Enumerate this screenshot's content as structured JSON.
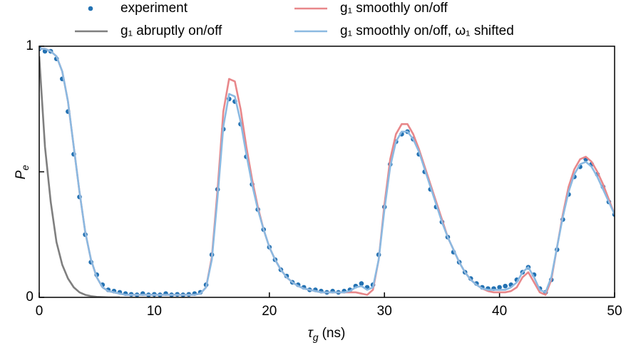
{
  "chart_data": {
    "type": "line",
    "xlabel": {
      "symbol": "τ",
      "sub": "g",
      "unit": "(ns)"
    },
    "ylabel": {
      "symbol": "P",
      "sub": "e"
    },
    "xlim": [
      0,
      50
    ],
    "ylim": [
      0,
      1
    ],
    "xticks": [
      0,
      10,
      20,
      30,
      40,
      50
    ],
    "yticks": [
      0,
      1
    ],
    "minor_yticks": [
      0.5
    ],
    "x": [
      0,
      0.5,
      1,
      1.5,
      2,
      2.5,
      3,
      3.5,
      4,
      4.5,
      5,
      5.5,
      6,
      6.5,
      7,
      7.5,
      8,
      8.5,
      9,
      9.5,
      10,
      10.5,
      11,
      11.5,
      12,
      12.5,
      13,
      13.5,
      14,
      14.5,
      15,
      15.5,
      16,
      16.5,
      17,
      17.5,
      18,
      18.5,
      19,
      19.5,
      20,
      20.5,
      21,
      21.5,
      22,
      22.5,
      23,
      23.5,
      24,
      24.5,
      25,
      25.5,
      26,
      26.5,
      27,
      27.5,
      28,
      28.5,
      29,
      29.5,
      30,
      30.5,
      31,
      31.5,
      32,
      32.5,
      33,
      33.5,
      34,
      34.5,
      35,
      35.5,
      36,
      36.5,
      37,
      37.5,
      38,
      38.5,
      39,
      39.5,
      40,
      40.5,
      41,
      41.5,
      42,
      42.5,
      43,
      43.5,
      44,
      44.5,
      45,
      45.5,
      46,
      46.5,
      47,
      47.5,
      48,
      48.5,
      49,
      49.5,
      50
    ],
    "series": [
      {
        "name": "experiment",
        "kind": "scatter",
        "color": "#2372b3",
        "values": [
          0.99,
          0.98,
          0.98,
          0.95,
          0.87,
          0.74,
          0.57,
          0.4,
          0.25,
          0.14,
          0.09,
          0.05,
          0.03,
          0.025,
          0.02,
          0.015,
          0.012,
          0.01,
          0.015,
          0.01,
          0.012,
          0.01,
          0.015,
          0.01,
          0.012,
          0.01,
          0.012,
          0.015,
          0.02,
          0.05,
          0.17,
          0.43,
          0.67,
          0.79,
          0.78,
          0.69,
          0.56,
          0.45,
          0.35,
          0.27,
          0.2,
          0.15,
          0.11,
          0.085,
          0.06,
          0.05,
          0.04,
          0.03,
          0.03,
          0.025,
          0.02,
          0.025,
          0.02,
          0.025,
          0.03,
          0.045,
          0.055,
          0.04,
          0.05,
          0.17,
          0.36,
          0.53,
          0.62,
          0.65,
          0.66,
          0.63,
          0.57,
          0.5,
          0.43,
          0.36,
          0.3,
          0.24,
          0.18,
          0.14,
          0.1,
          0.075,
          0.055,
          0.04,
          0.035,
          0.035,
          0.04,
          0.045,
          0.05,
          0.07,
          0.1,
          0.12,
          0.09,
          0.035,
          0.02,
          0.07,
          0.19,
          0.31,
          0.41,
          0.48,
          0.52,
          0.55,
          0.53,
          0.49,
          0.44,
          0.38,
          0.33
        ]
      },
      {
        "name": "g₁ abruptly on/off",
        "color": "#7f7f7f",
        "x": [
          0,
          0.5,
          1,
          1.5,
          2,
          2.5,
          3,
          3.5,
          4,
          4.5,
          5,
          5.5,
          6,
          6.5,
          7
        ],
        "values": [
          0.96,
          0.6,
          0.38,
          0.22,
          0.13,
          0.075,
          0.04,
          0.02,
          0.01,
          0.005,
          0.002,
          0.001,
          0,
          0,
          0
        ]
      },
      {
        "name": "g₁ smoothly on/off",
        "color": "#e8878a",
        "values": [
          0.99,
          0.99,
          0.98,
          0.96,
          0.9,
          0.78,
          0.6,
          0.42,
          0.26,
          0.15,
          0.08,
          0.04,
          0.025,
          0.02,
          0.015,
          0.01,
          0.01,
          0.01,
          0.01,
          0.01,
          0.01,
          0.01,
          0.01,
          0.01,
          0.01,
          0.01,
          0.01,
          0.01,
          0.015,
          0.04,
          0.16,
          0.43,
          0.74,
          0.87,
          0.86,
          0.75,
          0.6,
          0.47,
          0.36,
          0.27,
          0.2,
          0.15,
          0.11,
          0.08,
          0.06,
          0.045,
          0.035,
          0.03,
          0.025,
          0.02,
          0.02,
          0.02,
          0.02,
          0.02,
          0.02,
          0.02,
          0.015,
          0.01,
          0.03,
          0.15,
          0.37,
          0.55,
          0.65,
          0.69,
          0.69,
          0.65,
          0.59,
          0.52,
          0.45,
          0.38,
          0.31,
          0.24,
          0.19,
          0.14,
          0.1,
          0.07,
          0.05,
          0.035,
          0.025,
          0.02,
          0.02,
          0.02,
          0.025,
          0.04,
          0.08,
          0.1,
          0.06,
          0.02,
          0.01,
          0.07,
          0.2,
          0.33,
          0.44,
          0.51,
          0.55,
          0.56,
          0.54,
          0.5,
          0.45,
          0.39,
          0.33
        ]
      },
      {
        "name": "g₁ smoothly on/off, ω₁ shifted",
        "color": "#8bb9e1",
        "values": [
          0.99,
          0.99,
          0.98,
          0.96,
          0.9,
          0.78,
          0.6,
          0.42,
          0.26,
          0.15,
          0.08,
          0.04,
          0.025,
          0.02,
          0.015,
          0.01,
          0.01,
          0.01,
          0.01,
          0.01,
          0.01,
          0.01,
          0.01,
          0.01,
          0.01,
          0.01,
          0.01,
          0.01,
          0.015,
          0.04,
          0.15,
          0.4,
          0.68,
          0.81,
          0.8,
          0.7,
          0.57,
          0.45,
          0.35,
          0.27,
          0.2,
          0.15,
          0.11,
          0.08,
          0.06,
          0.045,
          0.035,
          0.03,
          0.025,
          0.02,
          0.02,
          0.02,
          0.02,
          0.02,
          0.025,
          0.04,
          0.045,
          0.03,
          0.04,
          0.15,
          0.35,
          0.52,
          0.62,
          0.66,
          0.66,
          0.63,
          0.58,
          0.51,
          0.44,
          0.37,
          0.3,
          0.24,
          0.19,
          0.14,
          0.1,
          0.07,
          0.05,
          0.035,
          0.03,
          0.03,
          0.03,
          0.03,
          0.04,
          0.06,
          0.1,
          0.12,
          0.08,
          0.03,
          0.02,
          0.08,
          0.2,
          0.32,
          0.42,
          0.49,
          0.53,
          0.54,
          0.52,
          0.48,
          0.43,
          0.38,
          0.33
        ]
      }
    ]
  }
}
